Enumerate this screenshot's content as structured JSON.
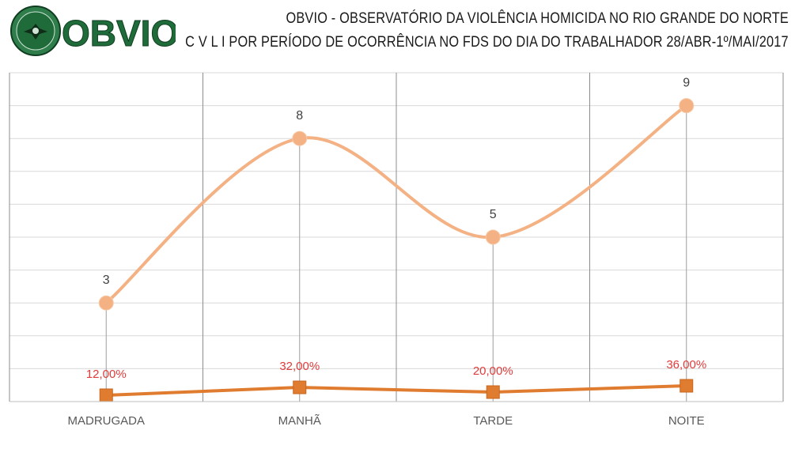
{
  "header": {
    "title": "OBVIO - OBSERVATÓRIO DA VIOLÊNCIA HOMICIDA NO RIO GRANDE DO NORTE",
    "subtitle": "C V L I  POR PERÍODO DE OCORRÊNCIA NO FDS DO DIA DO TRABALHADOR  28/ABR-1º/MAI/2017",
    "logo_text": "OBVIO"
  },
  "colors": {
    "count_line": "#f4b183",
    "count_marker": "#f4b183",
    "percent_line": "#e07c2f",
    "percent_marker": "#e07c2f",
    "percent_label": "#e03b3b",
    "grid": "#8c8c8c",
    "logo_green": "#1f6b3a"
  },
  "chart_data": {
    "type": "line",
    "categories": [
      "MADRUGADA",
      "MANHÃ",
      "TARDE",
      "NOITE"
    ],
    "ylim": [
      0,
      10
    ],
    "grid": true,
    "series": [
      {
        "values": [
          3,
          8,
          5,
          9
        ],
        "labels": [
          "3",
          "8",
          "5",
          "9"
        ],
        "smooth": true,
        "marker": "circle"
      },
      {
        "values": [
          12.0,
          32.0,
          20.0,
          36.0
        ],
        "labels": [
          "12,00%",
          "32,00%",
          "20,00%",
          "36,00%"
        ],
        "smooth": false,
        "marker": "square"
      }
    ]
  }
}
